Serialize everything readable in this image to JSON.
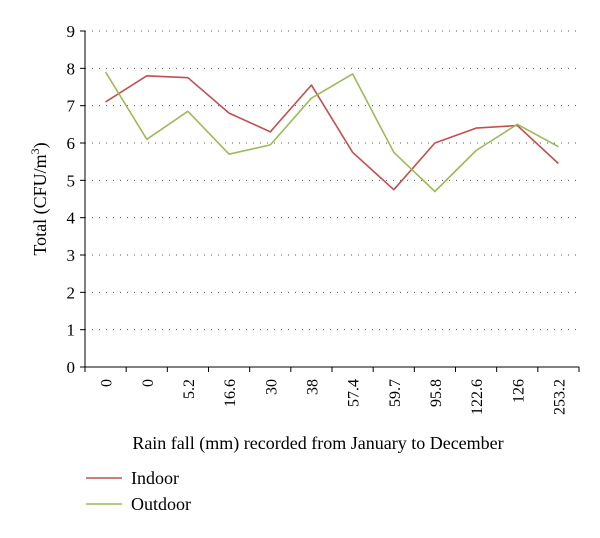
{
  "chart_data": {
    "type": "line",
    "categories": [
      "0",
      "0",
      "5.2",
      "16.6",
      "30",
      "38",
      "57.4",
      "59.7",
      "95.8",
      "122.6",
      "126",
      "253.2"
    ],
    "series": [
      {
        "name": "Indoor",
        "color": "#c0504d",
        "values": [
          7.1,
          7.8,
          7.75,
          6.8,
          6.3,
          7.55,
          5.75,
          4.75,
          6.0,
          6.4,
          6.47,
          5.45
        ]
      },
      {
        "name": "Outdoor",
        "color": "#9bbb59",
        "values": [
          7.9,
          6.1,
          6.85,
          5.7,
          5.95,
          7.2,
          7.85,
          5.75,
          4.7,
          5.8,
          6.5,
          5.9
        ]
      }
    ],
    "ylim": [
      0,
      9
    ],
    "yticks": [
      "0",
      "1",
      "2",
      "3",
      "4",
      "5",
      "6",
      "7",
      "8",
      "9"
    ],
    "ylabel": "Total (CFU/m",
    "ylabel_sup": "3",
    "ylabel_end": ")",
    "xlabel": "Rain fall (mm) recorded from January to December",
    "grid": "horizontal dotted",
    "legend_position": "bottom-left"
  }
}
